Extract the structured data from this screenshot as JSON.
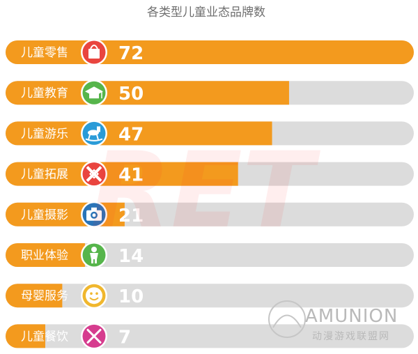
{
  "chart_data": {
    "type": "bar",
    "orientation": "horizontal",
    "title": "各类型儿童业态品牌数",
    "categories": [
      "儿童零售",
      "儿童教育",
      "儿童游乐",
      "儿童拓展",
      "儿童摄影",
      "职业体验",
      "母婴服务",
      "儿童餐饮"
    ],
    "values": [
      72,
      50,
      47,
      41,
      21,
      14,
      10,
      7
    ],
    "icons": [
      "shopping-bag-icon",
      "graduation-cap-icon",
      "rocking-horse-icon",
      "puzzle-knot-icon",
      "camera-icon",
      "child-figure-icon",
      "smiley-face-icon",
      "fork-knife-icon"
    ],
    "xlim": [
      0,
      72
    ],
    "grid": false,
    "legend": "none",
    "colors": {
      "bar_fill": "#F39A1E",
      "track_fill": "#DCDCDC",
      "icon_circle_colors": [
        "#E9453F",
        "#56B54B",
        "#2A9BD8",
        "#E9453F",
        "#2A74B8",
        "#56B54B",
        "#F0B72E",
        "#D63C8E"
      ],
      "title_text": "#6F6F6F"
    }
  },
  "watermark": {
    "brand": "AMUNION",
    "subtitle": "动漫游戏联盟网",
    "background_mark": "RET"
  }
}
